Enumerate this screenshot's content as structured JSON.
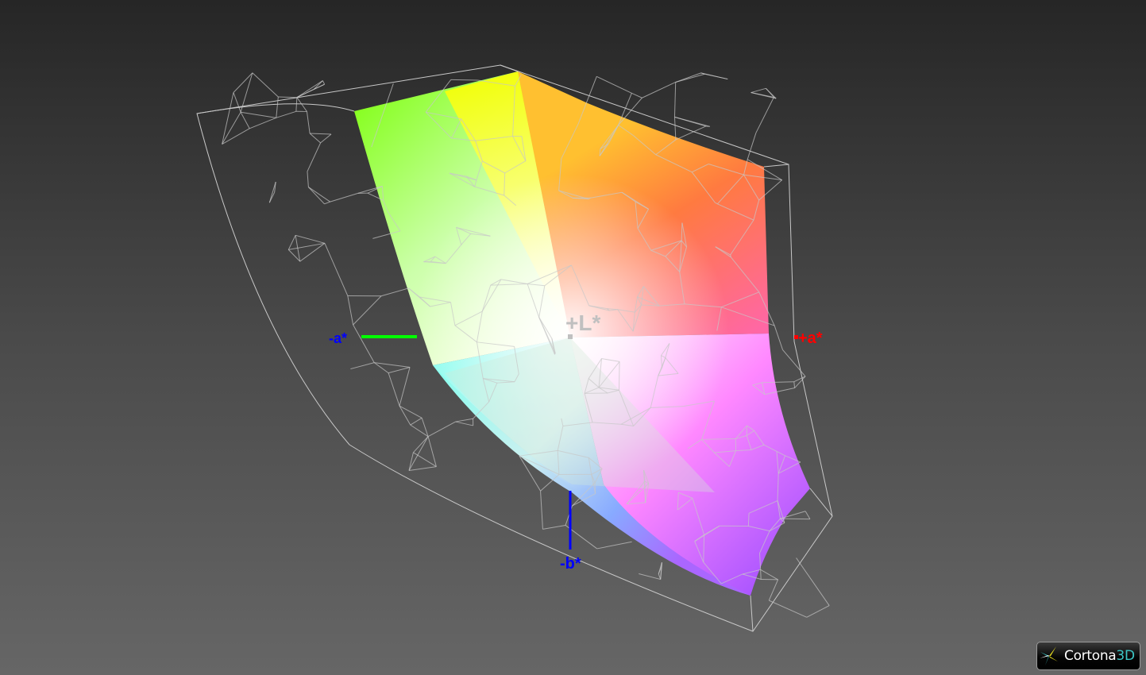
{
  "viewer": {
    "logo_text_main": "Cortona",
    "logo_text_accent": "3D"
  },
  "axes": {
    "plus_l": "+L*",
    "plus_a": "+a*",
    "minus_a": "-a*",
    "minus_b": "-b*"
  },
  "colors": {
    "plus_l": "#c0c0c0",
    "plus_a": "#ff0000",
    "minus_a": "#0000ff",
    "minus_b": "#0000ff",
    "a_axis_line": "#00ff00",
    "b_axis_line": "#0000ff",
    "wireframe": "#c8c8c8"
  }
}
